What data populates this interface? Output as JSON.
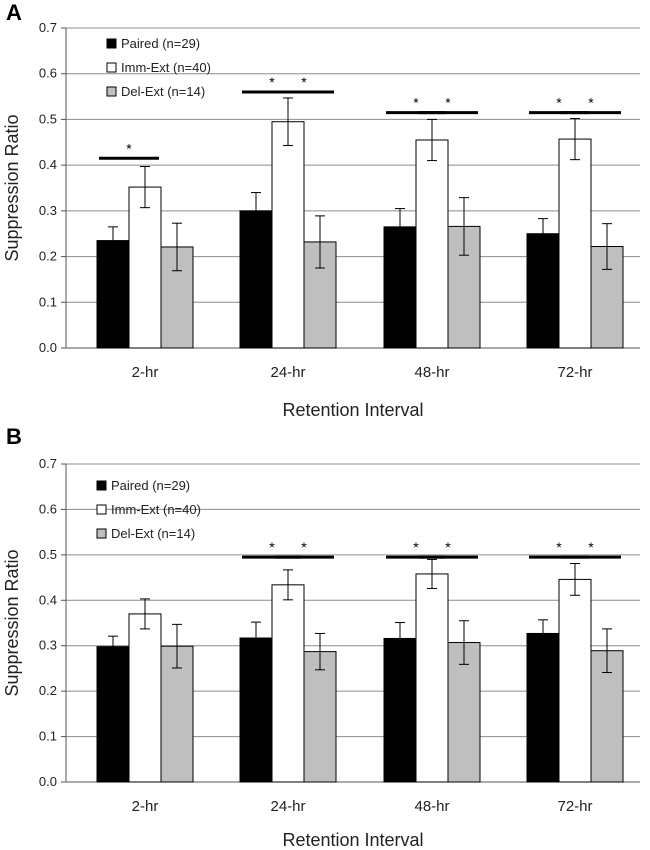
{
  "chart_data": [
    {
      "type": "bar",
      "panel_label": "A",
      "categories": [
        "2-hr",
        "24-hr",
        "48-hr",
        "72-hr"
      ],
      "series": [
        {
          "name": "Paired (n=29)",
          "color": "#000000",
          "values": [
            0.235,
            0.3,
            0.265,
            0.25
          ],
          "errors": [
            0.03,
            0.04,
            0.04,
            0.033
          ]
        },
        {
          "name": "Imm-Ext (n=40)",
          "color": "#ffffff",
          "values": [
            0.352,
            0.495,
            0.455,
            0.457
          ],
          "errors": [
            0.045,
            0.052,
            0.045,
            0.045
          ]
        },
        {
          "name": "Del-Ext (n=14)",
          "color": "#bfbfbf",
          "values": [
            0.221,
            0.232,
            0.266,
            0.222
          ],
          "errors": [
            0.052,
            0.057,
            0.063,
            0.05
          ]
        }
      ],
      "significance": [
        {
          "category": 0,
          "from": 0,
          "to": 1,
          "level": 0.415,
          "label": "*"
        },
        {
          "category": 1,
          "from": 0,
          "to": 1,
          "level": 0.56,
          "label": "*"
        },
        {
          "category": 1,
          "from": 1,
          "to": 2,
          "level": 0.56,
          "label": "*"
        },
        {
          "category": 2,
          "from": 0,
          "to": 1,
          "level": 0.515,
          "label": "*"
        },
        {
          "category": 2,
          "from": 1,
          "to": 2,
          "level": 0.515,
          "label": "*"
        },
        {
          "category": 3,
          "from": 0,
          "to": 1,
          "level": 0.515,
          "label": "*"
        },
        {
          "category": 3,
          "from": 1,
          "to": 2,
          "level": 0.515,
          "label": "*"
        }
      ],
      "ylabel": "Suppression Ratio",
      "xlabel": "Retention Interval",
      "ylim": [
        0,
        0.7
      ],
      "yticks": [
        "0.0",
        "0.1",
        "0.2",
        "0.3",
        "0.4",
        "0.5",
        "0.6",
        "0.7"
      ],
      "legend_position": "top-left",
      "grid": true
    },
    {
      "type": "bar",
      "panel_label": "B",
      "categories": [
        "2-hr",
        "24-hr",
        "48-hr",
        "72-hr"
      ],
      "series": [
        {
          "name": "Paired (n=29)",
          "color": "#000000",
          "values": [
            0.298,
            0.317,
            0.316,
            0.327
          ],
          "errors": [
            0.023,
            0.035,
            0.035,
            0.03
          ]
        },
        {
          "name": "Imm-Ext (n=40)",
          "color": "#ffffff",
          "values": [
            0.37,
            0.434,
            0.458,
            0.446
          ],
          "errors": [
            0.033,
            0.033,
            0.032,
            0.035
          ]
        },
        {
          "name": "Del-Ext (n=14)",
          "color": "#bfbfbf",
          "values": [
            0.299,
            0.287,
            0.307,
            0.289
          ],
          "errors": [
            0.048,
            0.04,
            0.048,
            0.048
          ]
        }
      ],
      "significance": [
        {
          "category": 1,
          "from": 0,
          "to": 1,
          "level": 0.495,
          "label": "*"
        },
        {
          "category": 1,
          "from": 1,
          "to": 2,
          "level": 0.495,
          "label": "*"
        },
        {
          "category": 2,
          "from": 0,
          "to": 1,
          "level": 0.495,
          "label": "*"
        },
        {
          "category": 2,
          "from": 1,
          "to": 2,
          "level": 0.495,
          "label": "*"
        },
        {
          "category": 3,
          "from": 0,
          "to": 1,
          "level": 0.495,
          "label": "*"
        },
        {
          "category": 3,
          "from": 1,
          "to": 2,
          "level": 0.495,
          "label": "*"
        }
      ],
      "ylabel": "Suppression Ratio",
      "xlabel": "Retention Interval",
      "ylim": [
        0,
        0.7
      ],
      "yticks": [
        "0.0",
        "0.1",
        "0.2",
        "0.3",
        "0.4",
        "0.5",
        "0.6",
        "0.7"
      ],
      "legend_position": "top-left",
      "grid": true
    }
  ]
}
